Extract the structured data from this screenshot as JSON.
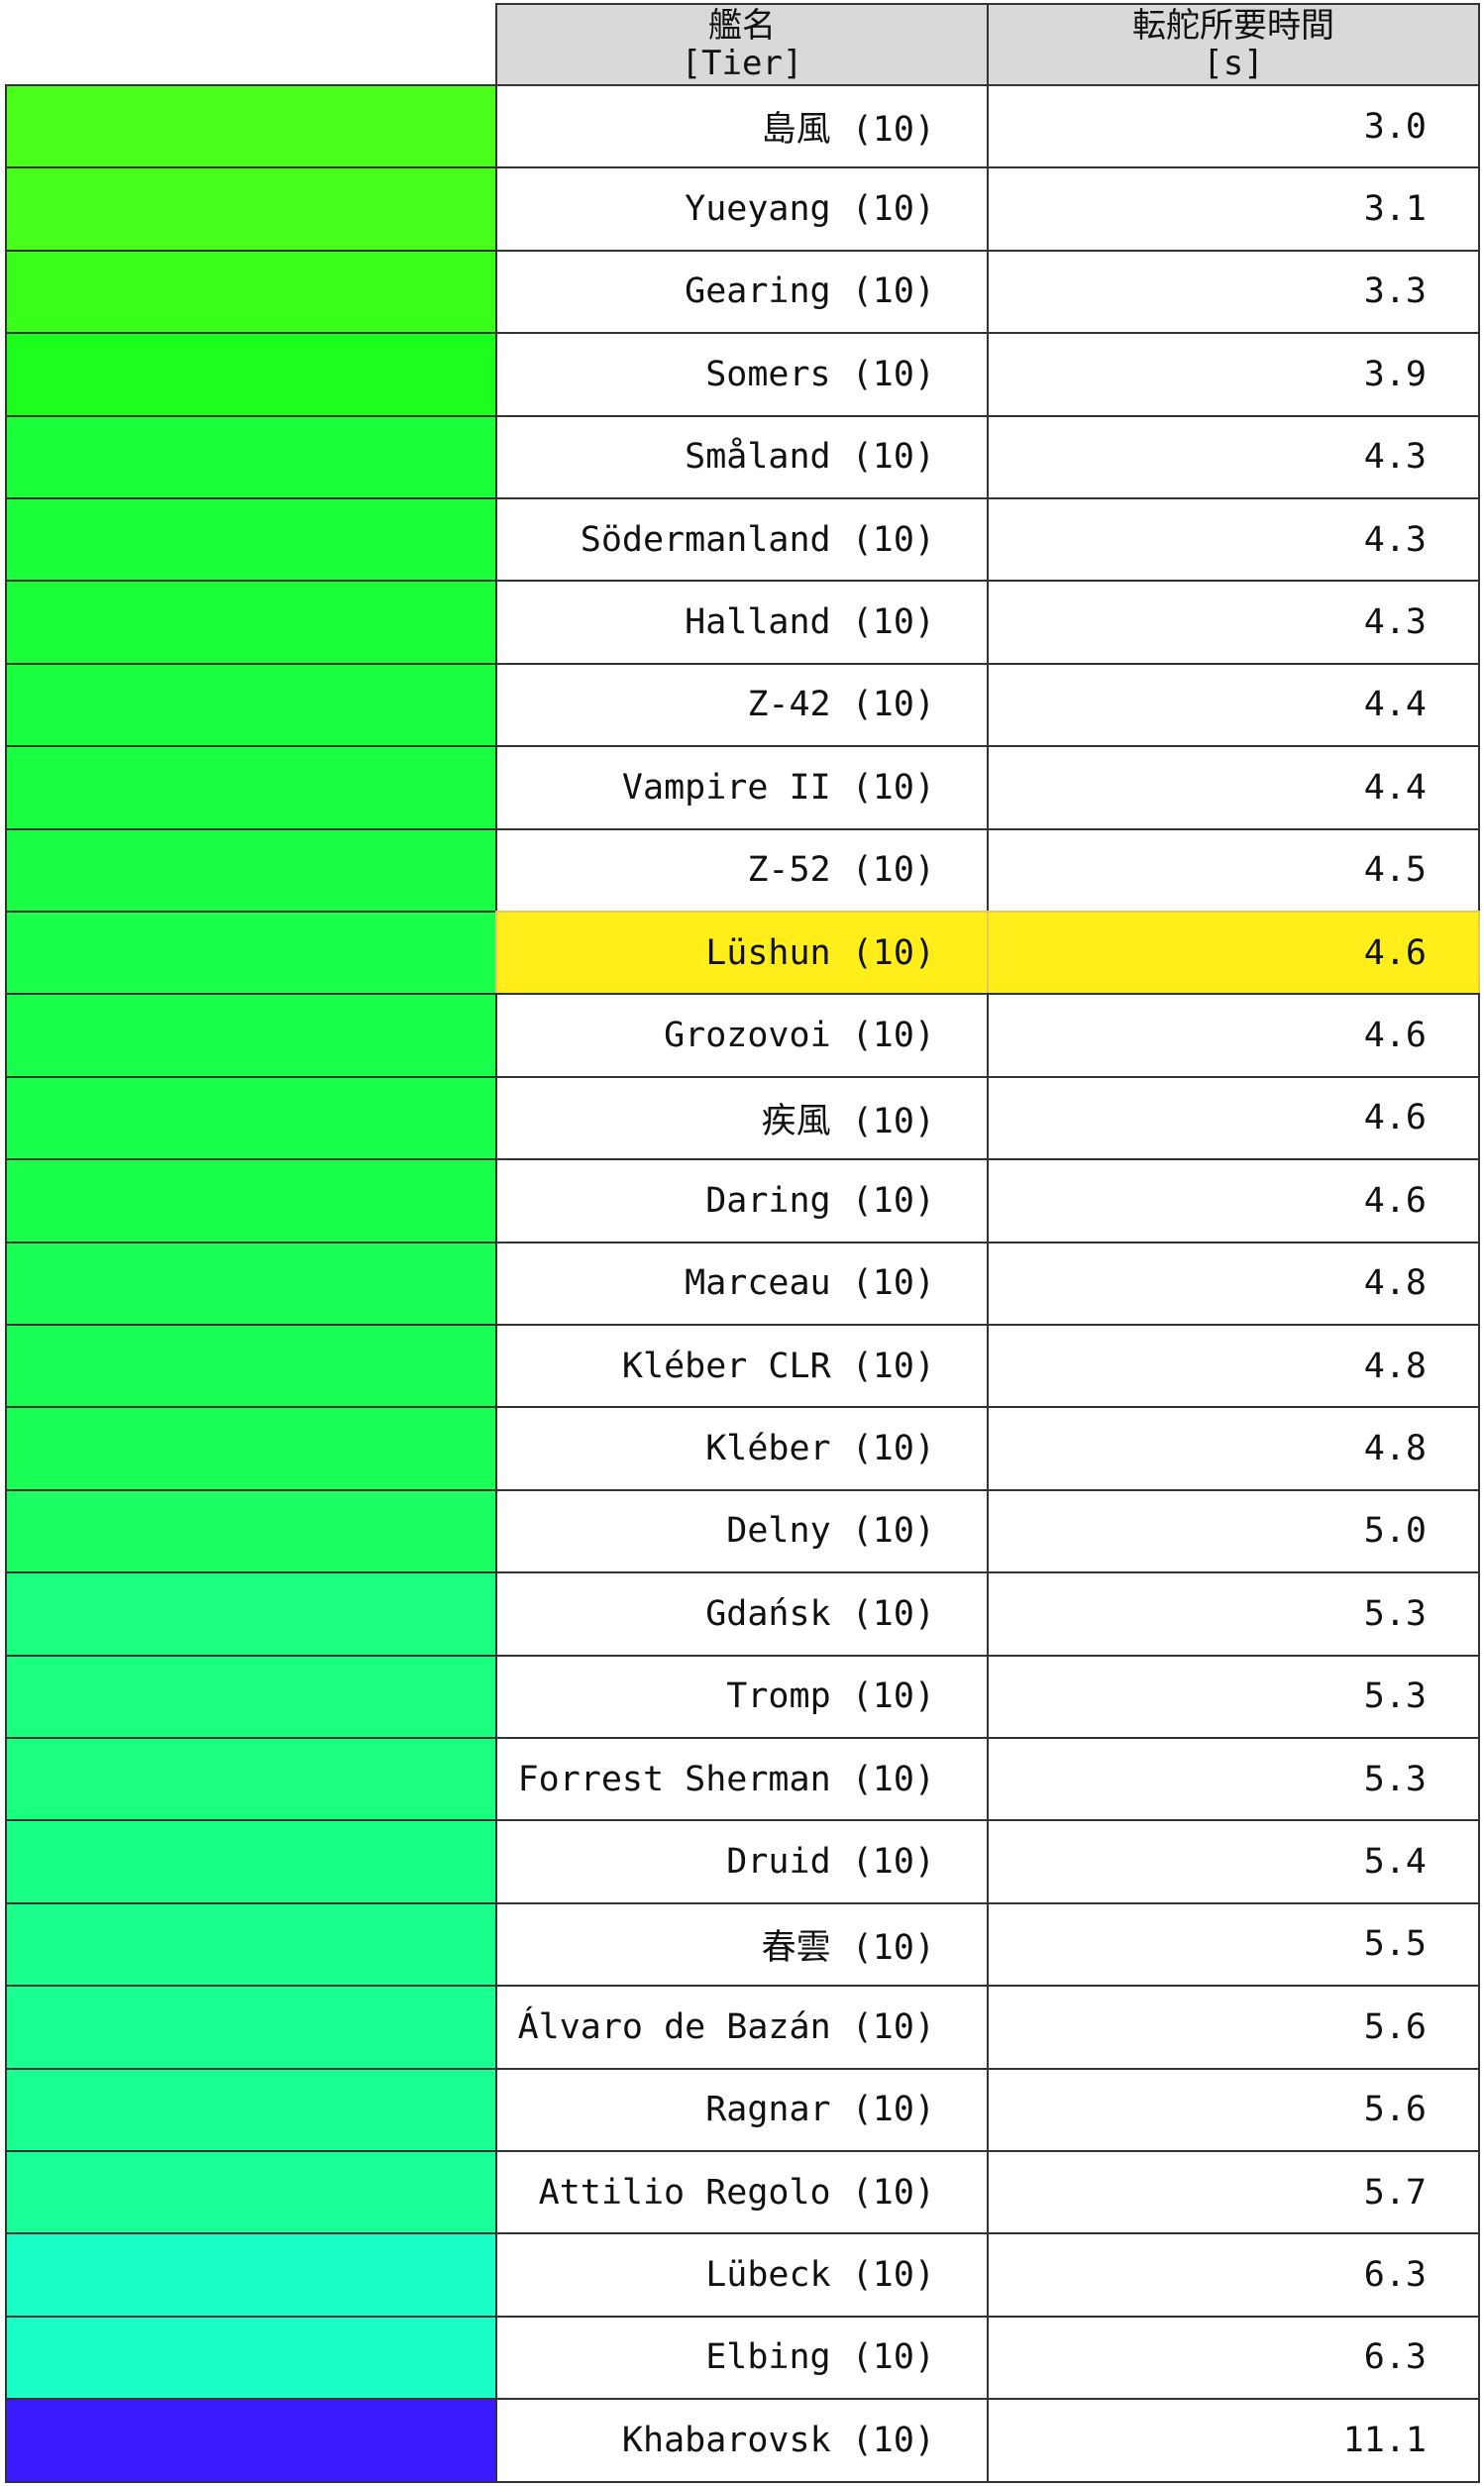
{
  "header": {
    "name_line1": "艦名",
    "name_line2": "[Tier]",
    "value_line1": "転舵所要時間",
    "value_line2": "[s]"
  },
  "chart_data": {
    "type": "table",
    "columns": [
      "艦名 [Tier]",
      "転舵所要時間 [s]"
    ],
    "highlight": "Lüshun (10)",
    "highlight_color": "#ffee1a",
    "color_scale": {
      "low": "#4dff1a",
      "mid": "#1aff8a",
      "high": "#3a1aff"
    },
    "rows": [
      {
        "name": "島風 (10)",
        "value": "3.0",
        "color": "#4cff1a"
      },
      {
        "name": "Yueyang (10)",
        "value": "3.1",
        "color": "#47ff1a"
      },
      {
        "name": "Gearing (10)",
        "value": "3.3",
        "color": "#3aff1a"
      },
      {
        "name": "Somers (10)",
        "value": "3.9",
        "color": "#1cff1c"
      },
      {
        "name": "Småland (10)",
        "value": "4.3",
        "color": "#1aff3a"
      },
      {
        "name": "Södermanland (10)",
        "value": "4.3",
        "color": "#1aff3a"
      },
      {
        "name": "Halland (10)",
        "value": "4.3",
        "color": "#1aff3a"
      },
      {
        "name": "Z-42 (10)",
        "value": "4.4",
        "color": "#1aff40"
      },
      {
        "name": "Vampire II (10)",
        "value": "4.4",
        "color": "#1aff40"
      },
      {
        "name": "Z-52 (10)",
        "value": "4.5",
        "color": "#1aff46"
      },
      {
        "name": "Lüshun (10)",
        "value": "4.6",
        "color": "#1aff4b"
      },
      {
        "name": "Grozovoi (10)",
        "value": "4.6",
        "color": "#1aff4b"
      },
      {
        "name": "疾風 (10)",
        "value": "4.6",
        "color": "#1aff4b"
      },
      {
        "name": "Daring (10)",
        "value": "4.6",
        "color": "#1aff4b"
      },
      {
        "name": "Marceau (10)",
        "value": "4.8",
        "color": "#1aff56"
      },
      {
        "name": "Kléber CLR (10)",
        "value": "4.8",
        "color": "#1aff56"
      },
      {
        "name": "Kléber (10)",
        "value": "4.8",
        "color": "#1aff56"
      },
      {
        "name": "Delny (10)",
        "value": "5.0",
        "color": "#1aff62"
      },
      {
        "name": "Gdańsk (10)",
        "value": "5.3",
        "color": "#1aff80"
      },
      {
        "name": "Tromp (10)",
        "value": "5.3",
        "color": "#1aff80"
      },
      {
        "name": "Forrest Sherman (10)",
        "value": "5.3",
        "color": "#1aff80"
      },
      {
        "name": "Druid (10)",
        "value": "5.4",
        "color": "#1aff85"
      },
      {
        "name": "春雲 (10)",
        "value": "5.5",
        "color": "#1aff8b"
      },
      {
        "name": "Álvaro de Bazán (10)",
        "value": "5.6",
        "color": "#1aff91"
      },
      {
        "name": "Ragnar (10)",
        "value": "5.6",
        "color": "#1aff91"
      },
      {
        "name": "Attilio Regolo (10)",
        "value": "5.7",
        "color": "#1aff97"
      },
      {
        "name": "Lübeck (10)",
        "value": "6.3",
        "color": "#1affc8"
      },
      {
        "name": "Elbing (10)",
        "value": "6.3",
        "color": "#1affc8"
      },
      {
        "name": "Khabarovsk (10)",
        "value": "11.1",
        "color": "#3a1aff"
      }
    ]
  }
}
